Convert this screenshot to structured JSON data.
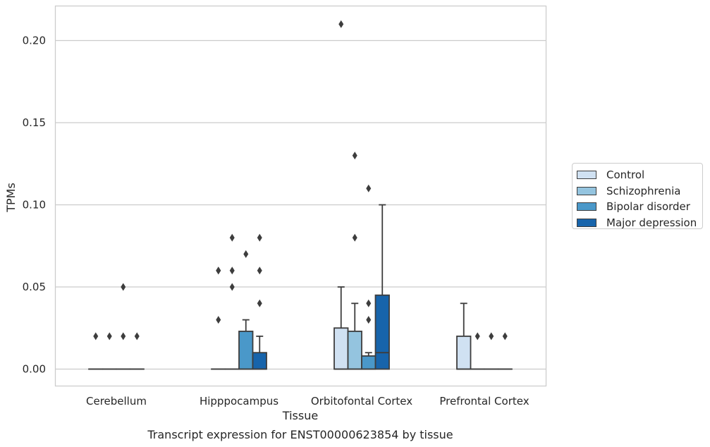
{
  "chart_data": {
    "type": "box",
    "caption": "Transcript expression for ENST00000623854 by tissue",
    "xlabel": "Tissue",
    "ylabel": "TPMs",
    "ylim": [
      -0.01,
      0.22
    ],
    "yticks": [
      "0.00",
      "0.05",
      "0.10",
      "0.15",
      "0.20"
    ],
    "ytick_values": [
      0,
      0.05,
      0.1,
      0.15,
      0.2
    ],
    "grid": "horizontal",
    "legend_position": "right",
    "categories": [
      "Cerebellum",
      "Hipppocampus",
      "Orbitofontal Cortex",
      "Prefrontal Cortex"
    ],
    "series": [
      {
        "name": "Control",
        "color": "#d0e1f2",
        "boxes": [
          {
            "q1": 0,
            "median": 0,
            "q3": 0,
            "whisker_low": 0,
            "whisker_high": 0,
            "outliers": [
              0.02
            ]
          },
          {
            "q1": 0,
            "median": 0,
            "q3": 0,
            "whisker_low": 0,
            "whisker_high": 0,
            "outliers": [
              0.03,
              0.06,
              0.06
            ]
          },
          {
            "q1": 0,
            "median": 0,
            "q3": 0.025,
            "whisker_low": 0,
            "whisker_high": 0.05,
            "outliers": [
              0.21
            ]
          },
          {
            "q1": 0,
            "median": 0,
            "q3": 0.02,
            "whisker_low": 0,
            "whisker_high": 0.04,
            "outliers": []
          }
        ]
      },
      {
        "name": "Schizophrenia",
        "color": "#94c4df",
        "boxes": [
          {
            "q1": 0,
            "median": 0,
            "q3": 0,
            "whisker_low": 0,
            "whisker_high": 0,
            "outliers": [
              0.02
            ]
          },
          {
            "q1": 0,
            "median": 0,
            "q3": 0,
            "whisker_low": 0,
            "whisker_high": 0,
            "outliers": [
              0.05,
              0.06,
              0.08
            ]
          },
          {
            "q1": 0,
            "median": 0,
            "q3": 0.023,
            "whisker_low": 0,
            "whisker_high": 0.04,
            "outliers": [
              0.08,
              0.13
            ]
          },
          {
            "q1": 0,
            "median": 0,
            "q3": 0,
            "whisker_low": 0,
            "whisker_high": 0,
            "outliers": [
              0.02
            ]
          }
        ]
      },
      {
        "name": "Bipolar disorder",
        "color": "#4a98c9",
        "boxes": [
          {
            "q1": 0,
            "median": 0,
            "q3": 0,
            "whisker_low": 0,
            "whisker_high": 0,
            "outliers": [
              0.02,
              0.05
            ]
          },
          {
            "q1": 0,
            "median": 0,
            "q3": 0.023,
            "whisker_low": 0,
            "whisker_high": 0.03,
            "outliers": [
              0.07
            ]
          },
          {
            "q1": 0,
            "median": 0,
            "q3": 0.008,
            "whisker_low": 0,
            "whisker_high": 0.01,
            "outliers": [
              0.03,
              0.04,
              0.11
            ]
          },
          {
            "q1": 0,
            "median": 0,
            "q3": 0,
            "whisker_low": 0,
            "whisker_high": 0,
            "outliers": [
              0.02
            ]
          }
        ]
      },
      {
        "name": "Major depression",
        "color": "#1764ab",
        "boxes": [
          {
            "q1": 0,
            "median": 0,
            "q3": 0,
            "whisker_low": 0,
            "whisker_high": 0,
            "outliers": [
              0.02
            ]
          },
          {
            "q1": 0,
            "median": 0,
            "q3": 0.01,
            "whisker_low": 0,
            "whisker_high": 0.02,
            "outliers": [
              0.04,
              0.06,
              0.08
            ]
          },
          {
            "q1": 0,
            "median": 0.01,
            "q3": 0.045,
            "whisker_low": 0,
            "whisker_high": 0.1,
            "outliers": []
          },
          {
            "q1": 0,
            "median": 0,
            "q3": 0,
            "whisker_low": 0,
            "whisker_high": 0,
            "outliers": [
              0.02
            ]
          }
        ]
      }
    ]
  }
}
